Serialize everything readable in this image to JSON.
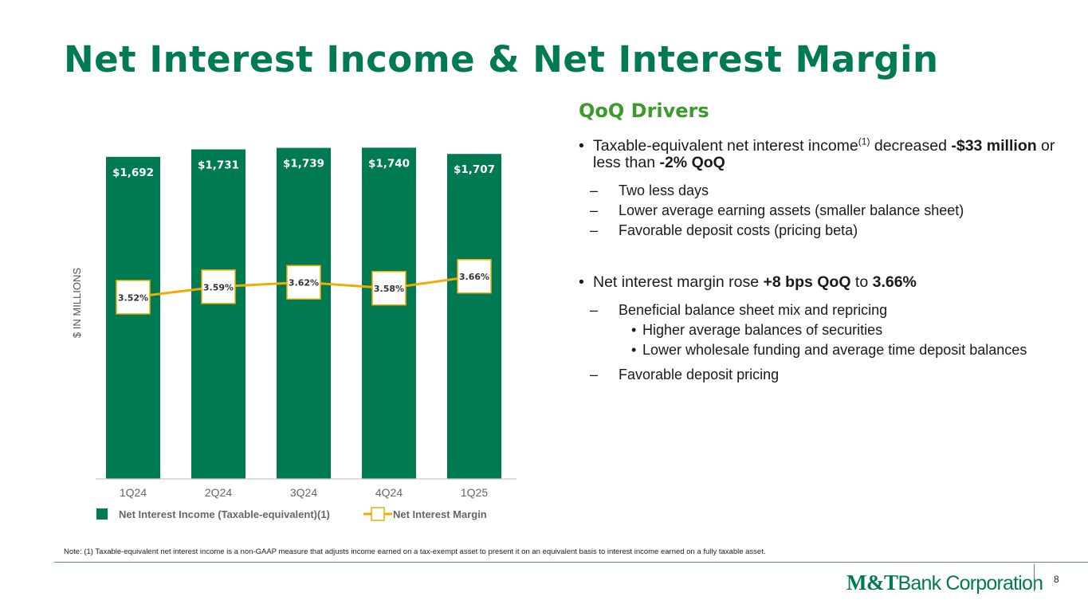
{
  "slide": {
    "title": "Net Interest Income & Net Interest Margin",
    "page_number": "8",
    "note": "Note: (1) Taxable-equivalent net interest income is a non-GAAP measure that adjusts income earned on a tax-exempt asset to present it on an equivalent basis to interest income earned on a fully taxable asset.",
    "logo": {
      "bold": "M&T",
      "light": "Bank Corporation"
    }
  },
  "drivers": {
    "heading": "QoQ Drivers",
    "b1": {
      "a": "Taxable-equivalent net interest income",
      "sup": "(1)",
      "b": " decreased ",
      "c": "-$33 million",
      "d": " or less than ",
      "e": "-2% QoQ"
    },
    "b1_subs": [
      "Two less days",
      "Lower average earning assets (smaller balance sheet)",
      "Favorable deposit costs (pricing beta)"
    ],
    "b2": {
      "a": "Net interest margin rose ",
      "b": "+8 bps QoQ",
      "c": " to ",
      "d": "3.66%"
    },
    "b2_sub1": "Beneficial balance sheet mix and repricing",
    "b2_sub1_items": [
      "Higher average balances of securities",
      "Lower wholesale funding and average time deposit balances"
    ],
    "b2_sub2": "Favorable deposit pricing"
  },
  "chart_data": {
    "type": "bar",
    "categories": [
      "1Q24",
      "2Q24",
      "3Q24",
      "4Q24",
      "1Q25"
    ],
    "ylabel": "$ IN MILLIONS",
    "series": [
      {
        "name": "Net Interest Income (Taxable-equivalent)(1)",
        "type": "bar",
        "values": [
          1692,
          1731,
          1739,
          1740,
          1707
        ],
        "labels": [
          "$1,692",
          "$1,731",
          "$1,739",
          "$1,740",
          "$1,707"
        ],
        "color": "#007a53"
      },
      {
        "name": "Net Interest Margin",
        "type": "line",
        "values": [
          3.52,
          3.59,
          3.62,
          3.58,
          3.66
        ],
        "labels": [
          "3.52%",
          "3.59%",
          "3.62%",
          "3.58%",
          "3.66%"
        ],
        "color": "#f0ac00"
      }
    ],
    "bar_axis_range": [
      0,
      1800
    ],
    "line_axis_range": [
      2.3,
      4.6
    ],
    "grid": false,
    "legend_position": "bottom"
  }
}
